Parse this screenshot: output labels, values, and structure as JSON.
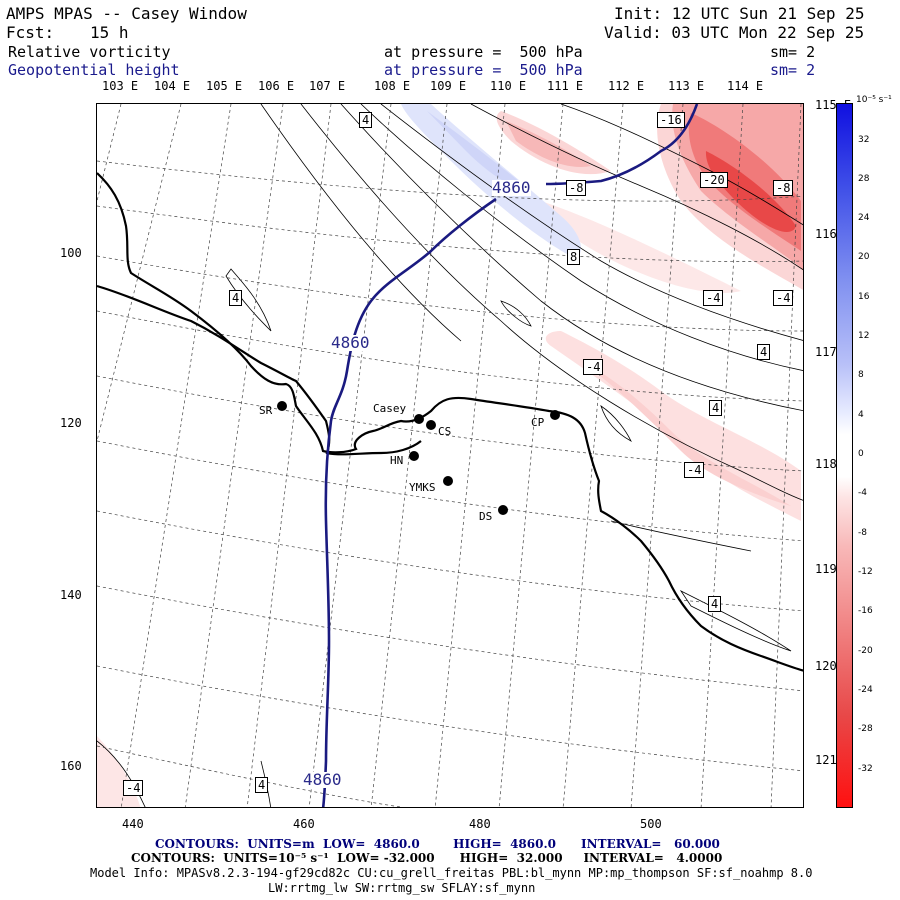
{
  "header": {
    "title": "AMPS MPAS -- Casey Window",
    "init": "Init: 12 UTC Sun 21 Sep 25",
    "fcst_label": "Fcst:",
    "fcst_value": "15 h",
    "valid": "Valid: 03 UTC Mon 22 Sep 25",
    "fields": [
      {
        "name": "Relative vorticity",
        "level": "at pressure =  500 hPa",
        "smooth": "sm= 2"
      },
      {
        "name": "Geopotential height",
        "level": "at pressure =  500 hPa",
        "smooth": "sm= 2"
      }
    ]
  },
  "lon_top": [
    "103 E",
    "104 E",
    "105 E",
    "106 E",
    "107 E",
    "108 E",
    "109 E",
    "110 E",
    "111 E",
    "112 E",
    "113 E",
    "114 E"
  ],
  "lon_right": [
    "115 E",
    "116 E",
    "117 E",
    "118 E",
    "119 E",
    "120 E",
    "121 E"
  ],
  "x_ticks": [
    "440",
    "460",
    "480",
    "500"
  ],
  "y_ticks": [
    "100",
    "120",
    "140",
    "160"
  ],
  "colorbar": {
    "units": "10⁻⁵ s⁻¹",
    "labels": [
      "32",
      "28",
      "24",
      "20",
      "16",
      "12",
      "8",
      "4",
      "0",
      "-4",
      "-8",
      "-12",
      "-16",
      "-20",
      "-24",
      "-28",
      "-32"
    ]
  },
  "stations": [
    {
      "id": "SR"
    },
    {
      "id": "Casey"
    },
    {
      "id": "CS"
    },
    {
      "id": "HN"
    },
    {
      "id": "YMKS"
    },
    {
      "id": "CP"
    },
    {
      "id": "DS"
    }
  ],
  "contour_labels": {
    "height": [
      "4860",
      "4860",
      "4860"
    ],
    "vort": [
      "4",
      "4",
      "-16",
      "-8",
      "-20",
      "-8",
      "8",
      "-4",
      "-4",
      "4",
      "-4",
      "4",
      "-4",
      "4",
      "-4",
      "4"
    ]
  },
  "footer": {
    "height_contours": "CONTOURS:  UNITS=m  LOW=  4860.0        HIGH=  4860.0      INTERVAL=   60.000",
    "vort_contours": "CONTOURS:  UNITS=10⁻⁵ s⁻¹  LOW= -32.000      HIGH=  32.000     INTERVAL=   4.0000",
    "model_info_1": "Model Info: MPASv8.2.3-194-gf29cd82c CU:cu_grell_freitas PBL:bl_mynn MP:mp_thompson SF:sf_noahmp 8.0",
    "model_info_2": "LW:rrtmg_lw SW:rrtmg_sw SFLAY:sf_mynn"
  },
  "colors": {
    "height_contour": "#1a1a80",
    "neg_vort": "#e83030",
    "pos_vort": "#3040d8"
  }
}
